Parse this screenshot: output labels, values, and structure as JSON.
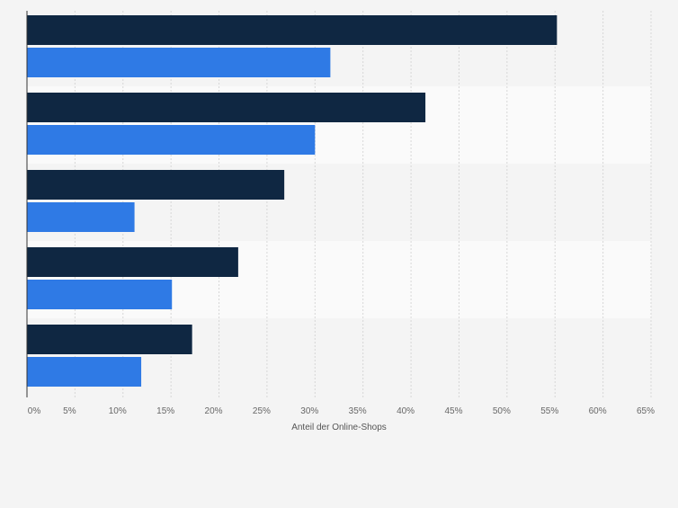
{
  "chart_data": {
    "type": "bar",
    "orientation": "horizontal",
    "categories": [
      "",
      "",
      "",
      "",
      ""
    ],
    "series": [
      {
        "color": "#0f2742",
        "values": [
          55.2,
          41.5,
          26.8,
          22.0,
          17.2
        ]
      },
      {
        "color": "#2f7ae5",
        "values": [
          31.6,
          30.0,
          11.2,
          15.1,
          11.9
        ]
      }
    ],
    "xlabel": "Anteil der Online-Shops",
    "xlim": [
      0,
      65
    ],
    "xticks": [
      "0%",
      "5%",
      "10%",
      "15%",
      "20%",
      "25%",
      "30%",
      "35%",
      "40%",
      "45%",
      "50%",
      "55%",
      "60%",
      "65%"
    ],
    "grid": true
  }
}
